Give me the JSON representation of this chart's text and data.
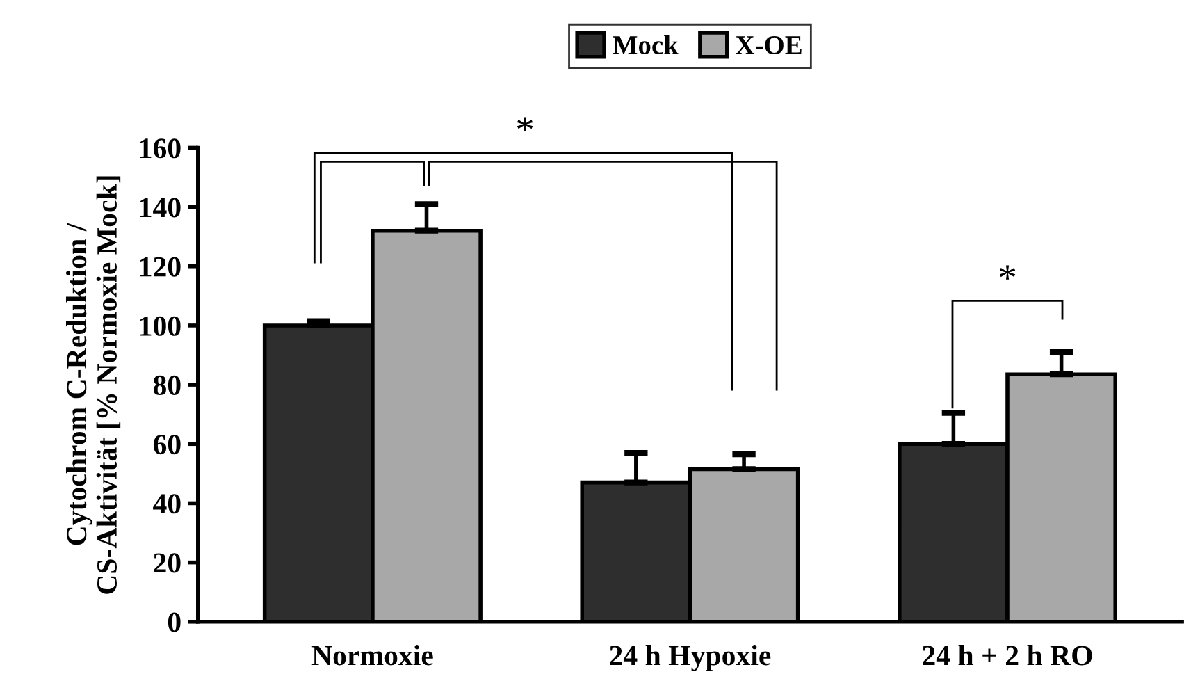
{
  "chart_data": {
    "type": "bar",
    "categories": [
      "Normoxie",
      "24 h Hypoxie",
      "24 h + 2 h RO"
    ],
    "ylabel": "Cytochrom C-Reduktion /\nCS-Aktivität [% Normoxie Mock]",
    "series": [
      {
        "name": "Mock",
        "color": "#2e2e2e",
        "values": [
          100,
          47,
          60
        ],
        "errors": [
          [
            100,
            101.5
          ],
          [
            47,
            57
          ],
          [
            60,
            70.5
          ]
        ]
      },
      {
        "name": "X-OE",
        "color": "#a8a8a8",
        "values": [
          132,
          51.5,
          83.5
        ],
        "errors": [
          [
            132,
            141
          ],
          [
            51.5,
            56.5
          ],
          [
            83.5,
            91
          ]
        ]
      }
    ],
    "ylim": [
      0,
      160
    ],
    "yticks": [
      0,
      20,
      40,
      60,
      80,
      100,
      120,
      140,
      160
    ],
    "grid": false,
    "legend": "top",
    "annotations": [
      "*",
      "*"
    ]
  }
}
